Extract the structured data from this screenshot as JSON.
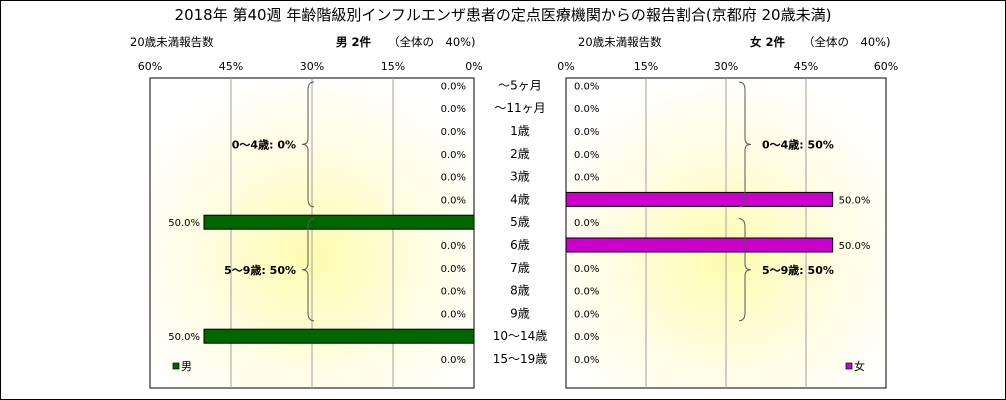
{
  "title": "2018年 第40週 年齢階級別インフルエンザ患者の定点医療機関からの報告割合(京都府 20歳未満)",
  "left_panel": {
    "caption": "20歳未満報告数",
    "header": "男 2件",
    "header_note": "（全体の　40%)",
    "legend": "男",
    "groups": [
      {
        "label": "0～4歳: 0%",
        "first": 0,
        "last": 5
      },
      {
        "label": "5～9歳: 50%",
        "first": 6,
        "last": 10
      }
    ]
  },
  "right_panel": {
    "caption": "20歳未満報告数",
    "header": "女 2件",
    "header_note": "（全体の　40%)",
    "legend": "女",
    "groups": [
      {
        "label": "0～4歳: 50%",
        "first": 0,
        "last": 5
      },
      {
        "label": "5～9歳: 50%",
        "first": 6,
        "last": 10
      }
    ]
  },
  "chart_data": {
    "type": "bar",
    "orientation": "horizontal",
    "categories": [
      "～5ヶ月",
      "～11ヶ月",
      "1歳",
      "2歳",
      "3歳",
      "4歳",
      "5歳",
      "6歳",
      "7歳",
      "8歳",
      "9歳",
      "10～14歳",
      "15～19歳"
    ],
    "xlim": [
      0,
      60
    ],
    "ticks": [
      "0%",
      "15%",
      "30%",
      "45%",
      "60%"
    ],
    "grid": true,
    "series": [
      {
        "name": "男",
        "color": "#006600",
        "values": [
          0,
          0,
          0,
          0,
          0,
          0,
          50,
          0,
          0,
          0,
          0,
          50,
          0
        ],
        "labels": [
          "0.0%",
          "0.0%",
          "0.0%",
          "0.0%",
          "0.0%",
          "0.0%",
          "50.0%",
          "0.0%",
          "0.0%",
          "0.0%",
          "0.0%",
          "50.0%",
          "0.0%"
        ]
      },
      {
        "name": "女",
        "color": "#cc00cc",
        "values": [
          0,
          0,
          0,
          0,
          0,
          50,
          0,
          50,
          0,
          0,
          0,
          0,
          0
        ],
        "labels": [
          "0.0%",
          "0.0%",
          "0.0%",
          "0.0%",
          "0.0%",
          "50.0%",
          "0.0%",
          "50.0%",
          "0.0%",
          "0.0%",
          "0.0%",
          "0.0%",
          "0.0%"
        ]
      }
    ]
  }
}
